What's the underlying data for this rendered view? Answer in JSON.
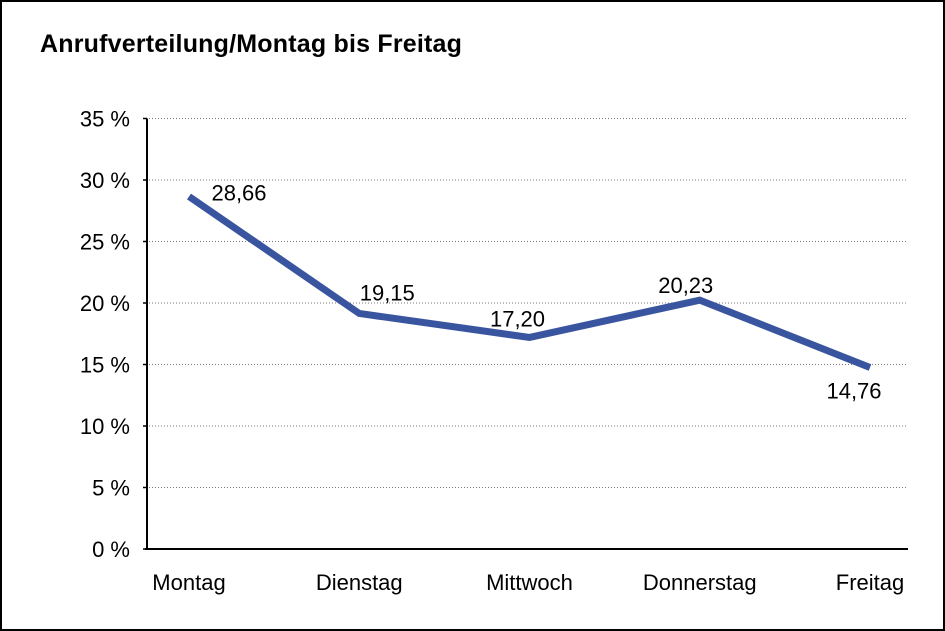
{
  "window": {
    "title": "Anrufverteilung/Montag bis Freitag"
  },
  "chart_data": {
    "type": "line",
    "title": "Anrufverteilung/Montag bis Freitag",
    "categories": [
      "Montag",
      "Dienstag",
      "Mittwoch",
      "Donnerstag",
      "Freitag"
    ],
    "series": [
      {
        "name": "Anrufverteilung",
        "values": [
          28.66,
          19.15,
          17.2,
          20.23,
          14.76
        ]
      }
    ],
    "value_labels": [
      "28,66",
      "19,15",
      "17,20",
      "20,23",
      "14,76"
    ],
    "xlabel": "",
    "ylabel": "",
    "ylim": [
      0,
      35
    ],
    "y_tick_step": 5,
    "y_tick_labels": [
      "0 %",
      "5 %",
      "10 %",
      "15 %",
      "20 %",
      "25 %",
      "30 %",
      "35 %"
    ],
    "grid": "horizontal-dotted",
    "legend": "none",
    "colors": {
      "line": "#3a55a0",
      "axis": "#000000",
      "gridline": "#777777",
      "text": "#000000",
      "background": "#ffffff"
    }
  }
}
